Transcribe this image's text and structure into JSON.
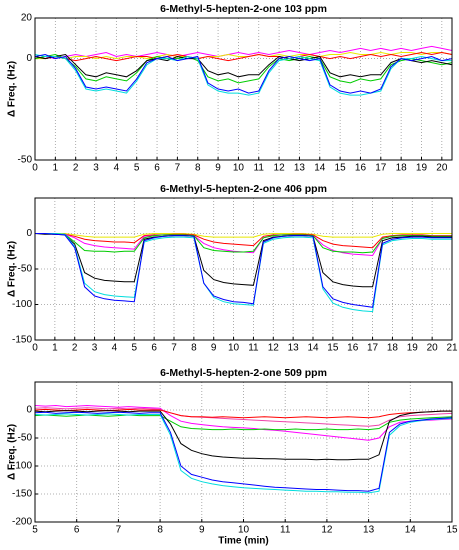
{
  "chart_data": [
    {
      "type": "line",
      "title": "6-Methyl-5-hepten-2-one 103 ppm",
      "ylabel": "Δ Freq. (Hz)",
      "grid": true,
      "xlim": [
        0,
        20.5
      ],
      "ylim": [
        -50,
        20
      ],
      "xticks": [
        0,
        1,
        2,
        3,
        4,
        5,
        6,
        7,
        8,
        9,
        10,
        11,
        12,
        13,
        14,
        15,
        16,
        17,
        18,
        19,
        20
      ],
      "yticks": [
        -50,
        0,
        20
      ],
      "x": [
        0,
        0.5,
        1,
        1.5,
        2,
        2.5,
        3,
        3.5,
        4,
        4.5,
        5,
        5.5,
        6,
        6.5,
        7,
        7.5,
        8,
        8.5,
        9,
        9.5,
        10,
        10.5,
        11,
        11.5,
        12,
        12.5,
        13,
        13.5,
        14,
        14.5,
        15,
        15.5,
        16,
        16.5,
        17,
        17.5,
        18,
        18.5,
        19,
        19.5,
        20,
        20.5
      ],
      "series": [
        {
          "color": "#ff00ff",
          "values": [
            0,
            1,
            0,
            1,
            2,
            1,
            2,
            3,
            1,
            2,
            1,
            2,
            3,
            2,
            1,
            2,
            3,
            2,
            1,
            2,
            3,
            2,
            3,
            2,
            3,
            4,
            3,
            2,
            3,
            4,
            3,
            4,
            5,
            4,
            5,
            4,
            5,
            4,
            5,
            6,
            5,
            4
          ]
        },
        {
          "color": "#e8e800",
          "values": [
            0,
            0,
            1,
            0,
            1,
            1,
            0,
            1,
            0,
            1,
            1,
            0,
            1,
            2,
            1,
            1,
            0,
            1,
            1,
            2,
            1,
            1,
            2,
            1,
            2,
            1,
            2,
            2,
            1,
            2,
            2,
            3,
            2,
            2,
            3,
            2,
            3,
            3,
            2,
            3,
            3,
            2
          ]
        },
        {
          "color": "#ff0000",
          "values": [
            1,
            0,
            1,
            0,
            -1,
            0,
            1,
            0,
            -1,
            0,
            1,
            1,
            0,
            1,
            2,
            1,
            0,
            1,
            0,
            -1,
            0,
            1,
            2,
            1,
            1,
            0,
            1,
            2,
            1,
            0,
            1,
            0,
            1,
            2,
            1,
            2,
            1,
            2,
            3,
            2,
            3,
            2
          ]
        },
        {
          "color": "#00cc00",
          "values": [
            0,
            1,
            2,
            0,
            -4,
            -10,
            -11,
            -9,
            -10,
            -11,
            -7,
            -1,
            1,
            0,
            0,
            1,
            -1,
            -9,
            -11,
            -10,
            -12,
            -11,
            -10,
            -4,
            0,
            -1,
            0,
            1,
            0,
            -9,
            -11,
            -12,
            -10,
            -11,
            -10,
            -3,
            -1,
            0,
            -1,
            -2,
            -3,
            -2
          ]
        },
        {
          "color": "#000000",
          "values": [
            1,
            0,
            1,
            2,
            -3,
            -8,
            -9,
            -7,
            -8,
            -9,
            -6,
            -1,
            0,
            -1,
            1,
            0,
            0,
            -6,
            -8,
            -7,
            -9,
            -8,
            -8,
            -3,
            1,
            0,
            -1,
            0,
            1,
            -7,
            -9,
            -8,
            -9,
            -8,
            -8,
            -2,
            0,
            -1,
            -2,
            -1,
            -2,
            -3
          ]
        },
        {
          "color": "#00dddd",
          "values": [
            2,
            1,
            1,
            0,
            -6,
            -15,
            -16,
            -15,
            -16,
            -17,
            -11,
            -3,
            0,
            0,
            -1,
            1,
            0,
            -13,
            -16,
            -17,
            -17,
            -18,
            -17,
            -7,
            -1,
            0,
            1,
            0,
            -1,
            -14,
            -17,
            -18,
            -18,
            -17,
            -16,
            -5,
            0,
            0,
            1,
            0,
            -1,
            -1
          ]
        },
        {
          "color": "#0000ff",
          "values": [
            1,
            2,
            0,
            1,
            -5,
            -14,
            -15,
            -14,
            -15,
            -16,
            -10,
            -2,
            0,
            1,
            -1,
            0,
            1,
            -12,
            -15,
            -16,
            -15,
            -17,
            -16,
            -6,
            0,
            1,
            0,
            -1,
            0,
            -13,
            -16,
            -17,
            -16,
            -17,
            -15,
            -4,
            0,
            -1,
            0,
            1,
            -1,
            0
          ]
        }
      ]
    },
    {
      "type": "line",
      "title": "6-Methyl-5-hepten-2-one 406 ppm",
      "ylabel": "Δ Freq. (Hz)",
      "grid": true,
      "xlim": [
        0,
        21
      ],
      "ylim": [
        -150,
        50
      ],
      "xticks": [
        0,
        1,
        2,
        3,
        4,
        5,
        6,
        7,
        8,
        9,
        10,
        11,
        12,
        13,
        14,
        15,
        16,
        17,
        18,
        19,
        20,
        21
      ],
      "yticks": [
        -150,
        -100,
        -50,
        0
      ],
      "x": [
        0,
        0.5,
        1,
        1.5,
        2,
        2.5,
        3,
        3.5,
        4,
        4.5,
        5,
        5.5,
        6,
        6.5,
        7,
        7.5,
        8,
        8.5,
        9,
        9.5,
        10,
        10.5,
        11,
        11.5,
        12,
        12.5,
        13,
        13.5,
        14,
        14.5,
        15,
        15.5,
        16,
        16.5,
        17,
        17.5,
        18,
        18.5,
        19,
        19.5,
        20,
        20.5,
        21
      ],
      "series": [
        {
          "color": "#e8e800",
          "values": [
            0,
            0,
            0,
            0,
            -2,
            -4,
            -5,
            -5,
            -5,
            -5,
            -5,
            -1,
            0,
            0,
            0,
            0,
            -1,
            -4,
            -5,
            -5,
            -5,
            -5,
            -5,
            -1,
            0,
            0,
            0,
            0,
            -1,
            -4,
            -5,
            -5,
            -5,
            -5,
            -5,
            -1,
            0,
            0,
            0,
            0,
            0,
            0,
            0
          ]
        },
        {
          "color": "#ff0000",
          "values": [
            0,
            0,
            -1,
            -1,
            -4,
            -8,
            -10,
            -11,
            -12,
            -12,
            -13,
            -3,
            -2,
            -2,
            -1,
            -1,
            -2,
            -8,
            -12,
            -14,
            -15,
            -16,
            -17,
            -4,
            -2,
            -2,
            -1,
            -1,
            -2,
            -10,
            -15,
            -17,
            -18,
            -19,
            -20,
            -5,
            -3,
            -2,
            -2,
            -2,
            -3,
            -3,
            -3
          ]
        },
        {
          "color": "#ff00ff",
          "values": [
            0,
            0,
            -1,
            -1,
            -6,
            -14,
            -17,
            -19,
            -20,
            -21,
            -22,
            -4,
            -3,
            -2,
            -2,
            -2,
            -3,
            -14,
            -20,
            -23,
            -25,
            -26,
            -27,
            -6,
            -3,
            -2,
            -2,
            -2,
            -3,
            -16,
            -24,
            -27,
            -29,
            -30,
            -31,
            -7,
            -4,
            -3,
            -3,
            -3,
            -4,
            -4,
            -4
          ]
        },
        {
          "color": "#00cc00",
          "values": [
            0,
            0,
            0,
            -1,
            -12,
            -24,
            -25,
            -25,
            -26,
            -25,
            -25,
            -6,
            -3,
            -2,
            -2,
            -2,
            -3,
            -20,
            -24,
            -25,
            -26,
            -26,
            -25,
            -6,
            -3,
            -2,
            -2,
            -2,
            -3,
            -20,
            -25,
            -26,
            -26,
            -27,
            -26,
            -7,
            -4,
            -3,
            -3,
            -3,
            -4,
            -4,
            -4
          ]
        },
        {
          "color": "#000000",
          "values": [
            0,
            -1,
            -1,
            -2,
            -15,
            -55,
            -63,
            -66,
            -67,
            -68,
            -68,
            -8,
            -5,
            -4,
            -3,
            -3,
            -4,
            -52,
            -65,
            -69,
            -71,
            -72,
            -73,
            -10,
            -5,
            -4,
            -3,
            -3,
            -4,
            -55,
            -68,
            -72,
            -74,
            -75,
            -75,
            -10,
            -6,
            -5,
            -4,
            -4,
            -5,
            -5,
            -5
          ]
        },
        {
          "color": "#00dddd",
          "values": [
            0,
            0,
            0,
            -1,
            -18,
            -70,
            -82,
            -86,
            -88,
            -89,
            -90,
            -12,
            -8,
            -6,
            -5,
            -5,
            -6,
            -70,
            -90,
            -96,
            -99,
            -100,
            -101,
            -14,
            -8,
            -6,
            -5,
            -5,
            -6,
            -78,
            -98,
            -104,
            -107,
            -109,
            -110,
            -16,
            -10,
            -8,
            -7,
            -7,
            -8,
            -8,
            -8
          ]
        },
        {
          "color": "#0000ff",
          "values": [
            0,
            0,
            -1,
            -2,
            -20,
            -75,
            -88,
            -92,
            -94,
            -95,
            -96,
            -10,
            -6,
            -4,
            -3,
            -3,
            -4,
            -70,
            -88,
            -93,
            -96,
            -97,
            -99,
            -12,
            -6,
            -4,
            -3,
            -3,
            -4,
            -75,
            -92,
            -97,
            -100,
            -102,
            -104,
            -14,
            -8,
            -6,
            -5,
            -5,
            -6,
            -6,
            -6
          ]
        }
      ]
    },
    {
      "type": "line",
      "title": "6-Methyl-5-hepten-2-one 509 ppm",
      "ylabel": "Δ Freq. (Hz)",
      "xlabel": "Time  (min)",
      "grid": true,
      "xlim": [
        5,
        15
      ],
      "ylim": [
        -200,
        50
      ],
      "xticks": [
        5,
        6,
        7,
        8,
        9,
        10,
        11,
        12,
        13,
        14,
        15
      ],
      "yticks": [
        -200,
        -150,
        -100,
        -50,
        0
      ],
      "x": [
        5,
        5.25,
        5.5,
        5.75,
        6,
        6.25,
        6.5,
        6.75,
        7,
        7.25,
        7.5,
        7.75,
        8,
        8.25,
        8.5,
        8.75,
        9,
        9.25,
        9.5,
        9.75,
        10,
        10.25,
        10.5,
        10.75,
        11,
        11.25,
        11.5,
        11.75,
        12,
        12.25,
        12.5,
        12.75,
        13,
        13.25,
        13.5,
        13.75,
        14,
        14.25,
        14.5,
        14.75,
        15
      ],
      "series": [
        {
          "color": "#ff00ff",
          "values": [
            8,
            7,
            8,
            6,
            7,
            8,
            7,
            6,
            5,
            6,
            5,
            4,
            3,
            -10,
            -20,
            -24,
            -26,
            -28,
            -30,
            -31,
            -32,
            -33,
            -35,
            -36,
            -38,
            -40,
            -42,
            -44,
            -46,
            -48,
            -50,
            -52,
            -54,
            -50,
            -30,
            -22,
            -20,
            -19,
            -18,
            -17,
            -16
          ]
        },
        {
          "color": "#ee44aa",
          "values": [
            3,
            4,
            3,
            2,
            3,
            4,
            3,
            2,
            3,
            2,
            3,
            2,
            1,
            -5,
            -10,
            -12,
            -13,
            -14,
            -15,
            -16,
            -17,
            -18,
            -19,
            -20,
            -21,
            -22,
            -23,
            -24,
            -25,
            -26,
            -27,
            -28,
            -29,
            -27,
            -18,
            -12,
            -10,
            -9,
            -8,
            -7,
            -6
          ]
        },
        {
          "color": "#ff0000",
          "values": [
            0,
            1,
            0,
            -1,
            0,
            1,
            0,
            -1,
            0,
            1,
            0,
            0,
            0,
            -5,
            -10,
            -12,
            -12,
            -13,
            -12,
            -13,
            -14,
            -13,
            -12,
            -13,
            -14,
            -13,
            -12,
            -13,
            -14,
            -13,
            -12,
            -13,
            -14,
            -12,
            -8,
            -6,
            -5,
            -4,
            -3,
            -2,
            -2
          ]
        },
        {
          "color": "#00cc00",
          "values": [
            -10,
            -9,
            -10,
            -11,
            -10,
            -9,
            -10,
            -11,
            -10,
            -9,
            -10,
            -10,
            -10,
            -20,
            -30,
            -33,
            -34,
            -35,
            -35,
            -34,
            -35,
            -35,
            -34,
            -35,
            -35,
            -34,
            -35,
            -35,
            -34,
            -35,
            -35,
            -34,
            -35,
            -33,
            -22,
            -18,
            -16,
            -15,
            -14,
            -13,
            -12
          ]
        },
        {
          "color": "#000000",
          "values": [
            -2,
            -3,
            -2,
            -1,
            -2,
            -3,
            -2,
            -1,
            -2,
            -3,
            -2,
            -2,
            -2,
            -25,
            -60,
            -72,
            -78,
            -82,
            -84,
            -85,
            -86,
            -86,
            -87,
            -87,
            -88,
            -88,
            -88,
            -89,
            -88,
            -89,
            -89,
            -88,
            -88,
            -80,
            -20,
            -10,
            -6,
            -4,
            -3,
            -2,
            -2
          ]
        },
        {
          "color": "#00dddd",
          "values": [
            -8,
            -9,
            -8,
            -7,
            -8,
            -9,
            -8,
            -7,
            -8,
            -9,
            -8,
            -8,
            -8,
            -45,
            -108,
            -122,
            -128,
            -132,
            -135,
            -137,
            -139,
            -140,
            -141,
            -142,
            -143,
            -144,
            -145,
            -145,
            -146,
            -146,
            -147,
            -147,
            -148,
            -145,
            -45,
            -28,
            -22,
            -19,
            -17,
            -16,
            -15
          ]
        },
        {
          "color": "#0000ff",
          "values": [
            -5,
            -4,
            -6,
            -5,
            -4,
            -5,
            -6,
            -5,
            -4,
            -5,
            -6,
            -5,
            -5,
            -40,
            -100,
            -115,
            -120,
            -125,
            -128,
            -130,
            -132,
            -134,
            -136,
            -138,
            -139,
            -140,
            -141,
            -142,
            -142,
            -143,
            -144,
            -144,
            -145,
            -140,
            -40,
            -25,
            -20,
            -18,
            -16,
            -15,
            -14
          ]
        }
      ]
    }
  ]
}
